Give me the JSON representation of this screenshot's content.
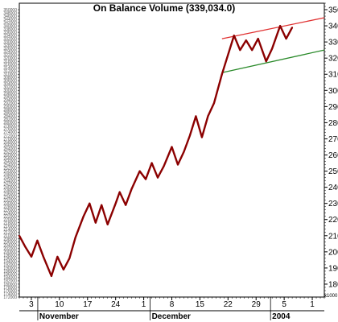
{
  "chart_data": {
    "type": "line",
    "title": "On Balance Volume (339,034.0)",
    "y_unit_label": "x1000",
    "ylim": [
      172,
      354
    ],
    "y_ticks_right": [
      180,
      190,
      200,
      210,
      220,
      230,
      240,
      250,
      260,
      270,
      280,
      290,
      300,
      310,
      320,
      330,
      340,
      350
    ],
    "y_ticks_left": [
      "172000",
      "174000",
      "176000",
      "178000",
      "180000",
      "182000",
      "184000",
      "186000",
      "188000",
      "190000",
      "192000",
      "194000",
      "196000",
      "198000",
      "200000",
      "202000",
      "204000",
      "206000",
      "208000",
      "210000",
      "212000",
      "214000",
      "216000",
      "218000",
      "220000",
      "222000",
      "224000",
      "226000",
      "228000",
      "230000",
      "232000",
      "234000",
      "236000",
      "238000",
      "240000",
      "242000",
      "244000",
      "246000",
      "248000",
      "250000",
      "252000",
      "254000",
      "256000",
      "258000",
      "260000",
      "262000",
      "264000",
      "266000",
      "268000",
      "270000",
      "272000",
      "274000",
      "276000",
      "278000",
      "280000",
      "282000",
      "284000",
      "286000",
      "288000",
      "290000",
      "292000",
      "294000",
      "296000",
      "298000",
      "300000",
      "302000",
      "304000",
      "306000",
      "308000",
      "310000",
      "312000",
      "314000",
      "316000",
      "318000",
      "320000",
      "322000",
      "324000",
      "326000",
      "328000",
      "330000",
      "332000",
      "334000",
      "336000",
      "338000",
      "340000",
      "342000",
      "344000",
      "346000",
      "348000",
      "350000"
    ],
    "xlim": [
      0,
      76
    ],
    "x_ticks": [
      {
        "x": 3,
        "label": "3"
      },
      {
        "x": 10,
        "label": "10"
      },
      {
        "x": 17,
        "label": "17"
      },
      {
        "x": 24,
        "label": "24"
      },
      {
        "x": 31,
        "label": "1"
      },
      {
        "x": 38,
        "label": "8"
      },
      {
        "x": 45,
        "label": "15"
      },
      {
        "x": 52,
        "label": "22"
      },
      {
        "x": 59,
        "label": "29"
      },
      {
        "x": 66,
        "label": "5"
      },
      {
        "x": 73,
        "label": "1"
      }
    ],
    "month_labels": [
      {
        "x": 5,
        "label": "November"
      },
      {
        "x": 33,
        "label": "December"
      },
      {
        "x": 63,
        "label": "2004"
      }
    ],
    "series": [
      {
        "color": "#8b0000",
        "points": [
          [
            0,
            210
          ],
          [
            1.5,
            203
          ],
          [
            3,
            197
          ],
          [
            4.5,
            207
          ],
          [
            6,
            197
          ],
          [
            8,
            185
          ],
          [
            9.5,
            197
          ],
          [
            11,
            189
          ],
          [
            12.5,
            196
          ],
          [
            14,
            209
          ],
          [
            16,
            222
          ],
          [
            17.5,
            230
          ],
          [
            19,
            218
          ],
          [
            20.5,
            229
          ],
          [
            22,
            217
          ],
          [
            24,
            230
          ],
          [
            25,
            237
          ],
          [
            26.5,
            229
          ],
          [
            28,
            239
          ],
          [
            30,
            250
          ],
          [
            31.5,
            245
          ],
          [
            33,
            255
          ],
          [
            34.5,
            246
          ],
          [
            36,
            253
          ],
          [
            38,
            265
          ],
          [
            39.5,
            254
          ],
          [
            41,
            262
          ],
          [
            42.5,
            272
          ],
          [
            44,
            284
          ],
          [
            45.5,
            271
          ],
          [
            47,
            284
          ],
          [
            48.5,
            292
          ],
          [
            50.5,
            310
          ],
          [
            52,
            322
          ],
          [
            53.5,
            334
          ],
          [
            55,
            325
          ],
          [
            56.5,
            331
          ],
          [
            58,
            325
          ],
          [
            59.5,
            332
          ],
          [
            61.5,
            318
          ],
          [
            63,
            326
          ],
          [
            65,
            340
          ],
          [
            66.5,
            332
          ],
          [
            68,
            339
          ]
        ]
      }
    ],
    "trendlines": [
      {
        "color": "#e03030",
        "from": [
          50.5,
          332
        ],
        "to": [
          76,
          345
        ]
      },
      {
        "color": "#2a8a2a",
        "from": [
          50.5,
          311
        ],
        "to": [
          76,
          325
        ]
      }
    ],
    "grid": false
  }
}
